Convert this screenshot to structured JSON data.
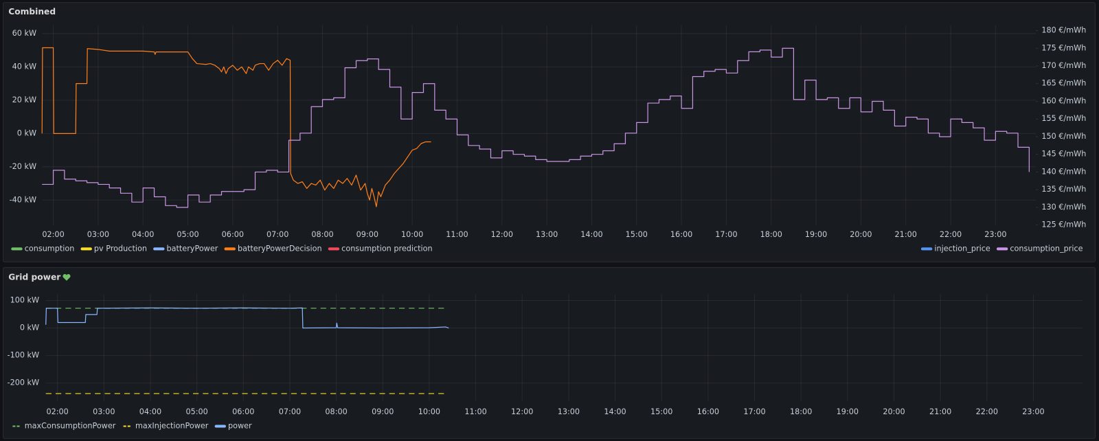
{
  "chart_data": [
    {
      "type": "line",
      "title": "Combined",
      "xlim": [
        1.75,
        23.9
      ],
      "xticks": [
        {
          "value": 2,
          "label": "02:00"
        },
        {
          "value": 3,
          "label": "03:00"
        },
        {
          "value": 4,
          "label": "04:00"
        },
        {
          "value": 5,
          "label": "05:00"
        },
        {
          "value": 6,
          "label": "06:00"
        },
        {
          "value": 7,
          "label": "07:00"
        },
        {
          "value": 8,
          "label": "08:00"
        },
        {
          "value": 9,
          "label": "09:00"
        },
        {
          "value": 10,
          "label": "10:00"
        },
        {
          "value": 11,
          "label": "11:00"
        },
        {
          "value": 12,
          "label": "12:00"
        },
        {
          "value": 13,
          "label": "13:00"
        },
        {
          "value": 14,
          "label": "14:00"
        },
        {
          "value": 15,
          "label": "15:00"
        },
        {
          "value": 16,
          "label": "16:00"
        },
        {
          "value": 17,
          "label": "17:00"
        },
        {
          "value": 18,
          "label": "18:00"
        },
        {
          "value": 19,
          "label": "19:00"
        },
        {
          "value": 20,
          "label": "20:00"
        },
        {
          "value": 21,
          "label": "21:00"
        },
        {
          "value": 22,
          "label": "22:00"
        },
        {
          "value": 23,
          "label": "23:00"
        }
      ],
      "ylim": [
        -55,
        65
      ],
      "yticks": [
        {
          "value": -40,
          "label": "-40 kW"
        },
        {
          "value": -20,
          "label": "-20 kW"
        },
        {
          "value": 0,
          "label": "0 kW"
        },
        {
          "value": 20,
          "label": "20 kW"
        },
        {
          "value": 40,
          "label": "40 kW"
        },
        {
          "value": 60,
          "label": "60 kW"
        }
      ],
      "y2lim": [
        125,
        181.5
      ],
      "y2ticks": [
        {
          "value": 125,
          "label": "125 €/mWh"
        },
        {
          "value": 130,
          "label": "130 €/mWh"
        },
        {
          "value": 135,
          "label": "135 €/mWh"
        },
        {
          "value": 140,
          "label": "140 €/mWh"
        },
        {
          "value": 145,
          "label": "145 €/mWh"
        },
        {
          "value": 150,
          "label": "150 €/mWh"
        },
        {
          "value": 155,
          "label": "155 €/mWh"
        },
        {
          "value": 160,
          "label": "160 €/mWh"
        },
        {
          "value": 165,
          "label": "165 €/mWh"
        },
        {
          "value": 170,
          "label": "170 €/mWh"
        },
        {
          "value": 175,
          "label": "175 €/mWh"
        },
        {
          "value": 180,
          "label": "180 €/mWh"
        }
      ],
      "grid": true,
      "legend": "bottom",
      "series": [
        {
          "name": "consumption",
          "color": "#73bf69",
          "hidden": true,
          "x": [],
          "values": []
        },
        {
          "name": "pv Production",
          "color": "#fade2a",
          "hidden": true,
          "x": [],
          "values": []
        },
        {
          "name": "batteryPower",
          "color": "#8ab8ff",
          "hidden": true,
          "x": [],
          "values": []
        },
        {
          "name": "batteryPowerDecision",
          "color": "#ff7f1a",
          "x": [
            1.75,
            1.76,
            2,
            2.01,
            2.5,
            2.51,
            2.75,
            2.76,
            3,
            3.25,
            4,
            4.25,
            4.27,
            4.29,
            5,
            5.1,
            5.2,
            5.4,
            5.5,
            5.6,
            5.7,
            5.75,
            5.8,
            5.85,
            5.9,
            6,
            6.1,
            6.2,
            6.3,
            6.35,
            6.45,
            6.5,
            6.6,
            6.7,
            6.8,
            6.9,
            7,
            7.1,
            7.2,
            7.28,
            7.29,
            7.35,
            7.45,
            7.55,
            7.65,
            7.75,
            7.85,
            7.95,
            8.05,
            8.15,
            8.25,
            8.35,
            8.45,
            8.55,
            8.65,
            8.75,
            8.85,
            8.95,
            9,
            9.05,
            9.1,
            9.15,
            9.2,
            9.25,
            9.3,
            9.4,
            9.5,
            9.6,
            9.7,
            9.8,
            9.9,
            10,
            10.1,
            10.2,
            10.3,
            10.42
          ],
          "values": [
            0,
            51.5,
            51.5,
            0,
            0,
            30,
            30,
            51,
            50.5,
            49.5,
            49.5,
            49,
            47.5,
            49,
            49,
            45,
            42,
            41.5,
            42,
            41,
            39,
            37,
            40,
            36,
            39,
            41,
            38,
            40,
            36,
            40,
            38,
            41,
            42,
            42,
            38,
            42,
            44,
            41,
            45,
            44,
            -24,
            -28,
            -30,
            -29,
            -33,
            -30,
            -31,
            -28,
            -34,
            -30,
            -33,
            -28,
            -30,
            -27,
            -31,
            -25,
            -34,
            -30,
            -36,
            -40,
            -33,
            -38,
            -44,
            -35,
            -38,
            -31,
            -28,
            -24,
            -21,
            -18,
            -14,
            -10,
            -9,
            -6,
            -5,
            -5
          ]
        },
        {
          "name": "consumption prediction",
          "color": "#f2495c",
          "hidden": true,
          "x": [],
          "values": []
        },
        {
          "name": "injection_price",
          "color": "#5794f2",
          "axis": "y2",
          "hidden": true,
          "x": [],
          "values": []
        },
        {
          "name": "consumption_price",
          "color": "#ca95e5",
          "axis": "y2",
          "line_interpolation": "stepAfter",
          "x": [
            1.75,
            2,
            2.25,
            2.5,
            2.75,
            3,
            3.25,
            3.5,
            3.75,
            4,
            4.25,
            4.5,
            4.75,
            5,
            5.25,
            5.5,
            5.75,
            6,
            6.25,
            6.5,
            6.75,
            7,
            7.25,
            7.5,
            7.75,
            8,
            8.25,
            8.5,
            8.75,
            9,
            9.25,
            9.5,
            9.75,
            10,
            10.25,
            10.5,
            10.75,
            11,
            11.25,
            11.5,
            11.75,
            12,
            12.25,
            12.5,
            12.75,
            13,
            13.25,
            13.5,
            13.75,
            14,
            14.25,
            14.5,
            14.75,
            15,
            15.25,
            15.5,
            15.75,
            16,
            16.25,
            16.5,
            16.75,
            17,
            17.25,
            17.5,
            17.75,
            18,
            18.25,
            18.5,
            18.75,
            19,
            19.25,
            19.5,
            19.75,
            20,
            20.25,
            20.5,
            20.75,
            21,
            21.25,
            21.5,
            21.75,
            22,
            22.25,
            22.5,
            22.75,
            23,
            23.25,
            23.5,
            23.75
          ],
          "values": [
            136.5,
            140.5,
            138,
            137.5,
            137,
            136.5,
            135.5,
            134,
            131.5,
            135.5,
            133,
            130.5,
            130,
            133.5,
            131.5,
            133.5,
            134.5,
            134.5,
            135,
            140,
            140.5,
            140,
            149,
            151,
            158.5,
            160.5,
            161,
            169.5,
            171.5,
            172,
            169,
            164,
            155,
            162.5,
            165,
            157.5,
            155,
            150.5,
            147.5,
            146.5,
            144,
            146,
            145,
            144.5,
            143.5,
            143,
            143,
            143.5,
            144.5,
            145,
            146,
            148,
            151,
            154,
            159.5,
            160.5,
            161.5,
            158,
            167,
            168.5,
            169,
            168,
            171.5,
            174,
            174.5,
            172.5,
            175,
            160.5,
            166,
            160.5,
            161,
            158,
            161,
            157,
            160,
            157.5,
            153,
            155.5,
            155,
            151,
            150,
            155,
            154,
            152.5,
            149,
            151.5,
            151,
            147,
            140
          ]
        }
      ]
    },
    {
      "type": "line",
      "title": "Grid power",
      "xlim": [
        1.75,
        24.05
      ],
      "xticks": [
        {
          "value": 2,
          "label": "02:00"
        },
        {
          "value": 3,
          "label": "03:00"
        },
        {
          "value": 4,
          "label": "04:00"
        },
        {
          "value": 5,
          "label": "05:00"
        },
        {
          "value": 6,
          "label": "06:00"
        },
        {
          "value": 7,
          "label": "07:00"
        },
        {
          "value": 8,
          "label": "08:00"
        },
        {
          "value": 9,
          "label": "09:00"
        },
        {
          "value": 10,
          "label": "10:00"
        },
        {
          "value": 11,
          "label": "11:00"
        },
        {
          "value": 12,
          "label": "12:00"
        },
        {
          "value": 13,
          "label": "13:00"
        },
        {
          "value": 14,
          "label": "14:00"
        },
        {
          "value": 15,
          "label": "15:00"
        },
        {
          "value": 16,
          "label": "16:00"
        },
        {
          "value": 17,
          "label": "17:00"
        },
        {
          "value": 18,
          "label": "18:00"
        },
        {
          "value": 19,
          "label": "19:00"
        },
        {
          "value": 20,
          "label": "20:00"
        },
        {
          "value": 21,
          "label": "21:00"
        },
        {
          "value": 22,
          "label": "22:00"
        },
        {
          "value": 23,
          "label": "23:00"
        }
      ],
      "ylim": [
        -265,
        122
      ],
      "yticks": [
        {
          "value": -200,
          "label": "-200 kW"
        },
        {
          "value": -100,
          "label": "-100 kW"
        },
        {
          "value": 0,
          "label": "0 kW"
        },
        {
          "value": 100,
          "label": "100 kW"
        }
      ],
      "grid": true,
      "legend": "bottom",
      "series": [
        {
          "name": "maxConsumptionPower",
          "color": "#73bf69",
          "dash": true,
          "x": [
            1.75,
            10.4
          ],
          "values": [
            72,
            72
          ]
        },
        {
          "name": "maxInjectionPower",
          "color": "#fade2a",
          "dash": true,
          "x": [
            1.75,
            10.4
          ],
          "values": [
            -238,
            -238
          ]
        },
        {
          "name": "power",
          "color": "#8ab8ff",
          "x": [
            1.75,
            1.76,
            2,
            2.01,
            2.6,
            2.61,
            2.85,
            2.86,
            4,
            5,
            6,
            7,
            7.27,
            7.28,
            8,
            8.01,
            8.03,
            9,
            10,
            10.35,
            10.42
          ],
          "values": [
            12,
            72,
            72,
            20,
            20,
            49,
            49,
            72,
            73,
            72,
            73,
            72,
            73,
            0,
            1,
            18,
            1,
            0,
            1,
            4,
            0
          ]
        }
      ]
    }
  ]
}
